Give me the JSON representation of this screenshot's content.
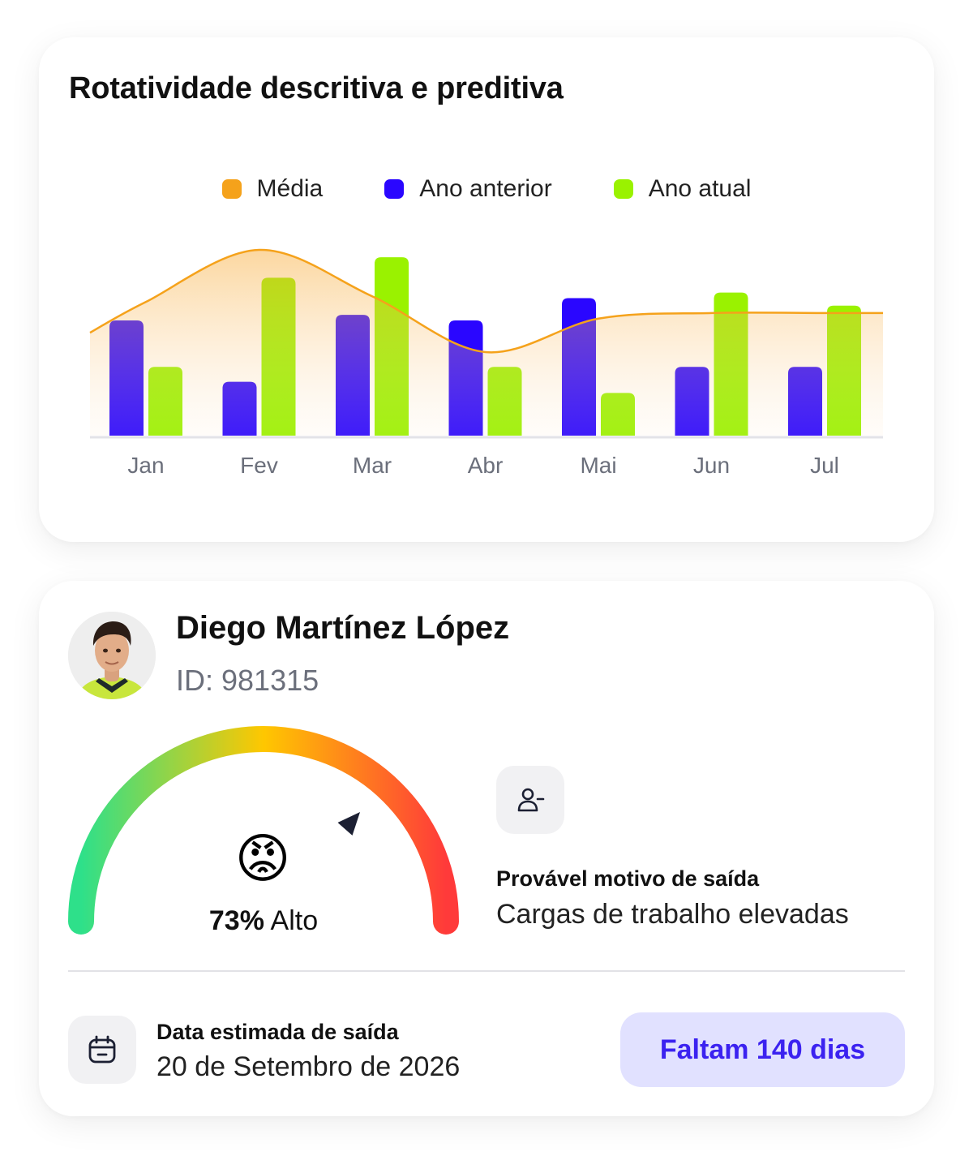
{
  "chart_data": {
    "type": "bar",
    "title": "Rotatividade descritiva e preditiva",
    "categories": [
      "Jan",
      "Fev",
      "Mar",
      "Abr",
      "Mai",
      "Jun",
      "Jul"
    ],
    "ylim": [
      0,
      10
    ],
    "grid": false,
    "legend_position": "top-center",
    "series": [
      {
        "name": "Média",
        "kind": "area-line",
        "color": "#f5a21b",
        "values": [
          7.2,
          10.0,
          7.5,
          4.5,
          6.3,
          6.6,
          6.6
        ]
      },
      {
        "name": "Ano anterior",
        "kind": "bar",
        "color": "#2a06ff",
        "values": [
          6.2,
          2.9,
          6.5,
          6.2,
          7.4,
          3.7,
          3.7
        ]
      },
      {
        "name": "Ano atual",
        "kind": "bar",
        "color": "#9af200",
        "values": [
          3.7,
          8.5,
          9.6,
          3.7,
          2.3,
          7.7,
          7.0
        ]
      }
    ]
  },
  "profile": {
    "name": "Diego Martínez López",
    "id_text": "ID: 981315",
    "avatar": "avatar-photo"
  },
  "gauge": {
    "percent": 73,
    "percent_text": "73%",
    "level_text": "Alto",
    "emoji": "😡",
    "colors": [
      "#2ee08a",
      "#ffc700",
      "#ff3a3a"
    ]
  },
  "reason": {
    "icon": "user-remove-icon",
    "title": "Provável motivo de saída",
    "value": "Cargas de trabalho elevadas"
  },
  "exit_date": {
    "icon": "calendar-icon",
    "title": "Data estimada de saída",
    "value": "20 de Setembro de 2026"
  },
  "countdown": {
    "label": "Faltam 140 dias",
    "color": "#3b22f0",
    "background": "#e1e1ff"
  }
}
